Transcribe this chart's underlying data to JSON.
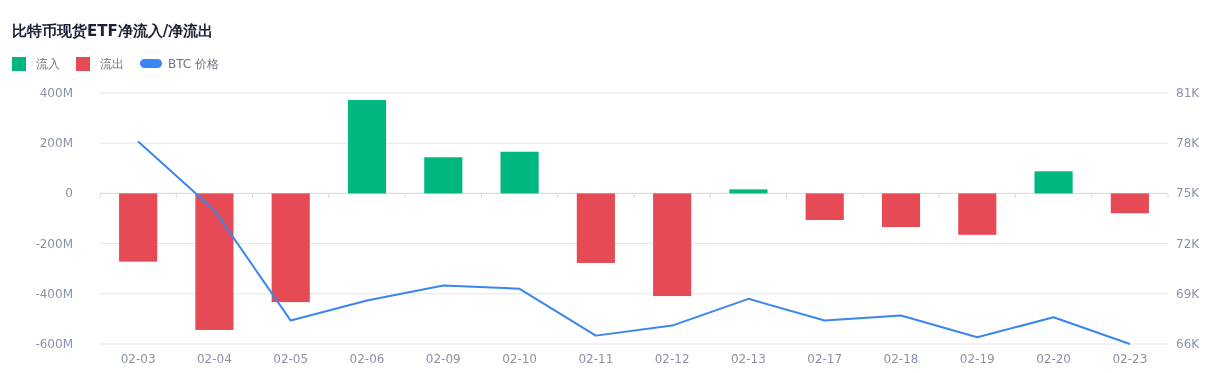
{
  "chart_data": {
    "type": "bar",
    "title": "比特币现货ETF净流入/净流出",
    "categories": [
      "02-03",
      "02-04",
      "02-05",
      "02-06",
      "02-09",
      "02-10",
      "02-11",
      "02-12",
      "02-13",
      "02-17",
      "02-18",
      "02-19",
      "02-20",
      "02-23"
    ],
    "stacked": true,
    "series": [
      {
        "name": "流入",
        "color": "#00b77f",
        "values": [
          null,
          null,
          null,
          372,
          144,
          166,
          null,
          null,
          16,
          null,
          null,
          null,
          88,
          null
        ]
      },
      {
        "name": "流出",
        "color": "#e64b55",
        "values": [
          -272,
          -544,
          -433,
          null,
          null,
          null,
          -277,
          -409,
          null,
          -106,
          -134,
          -165,
          null,
          -79
        ]
      },
      {
        "name": "BTC 价格",
        "type": "line",
        "axis": "y2",
        "color": "#3a86ee",
        "values": [
          78100,
          74000,
          67400,
          68600,
          69500,
          69300,
          66500,
          67100,
          68700,
          67400,
          67700,
          66400,
          67600,
          66000
        ]
      }
    ],
    "ylim": [
      -600,
      400
    ],
    "yticks": [
      {
        "value": -600,
        "label": "-600M"
      },
      {
        "value": -400,
        "label": "-400M"
      },
      {
        "value": -200,
        "label": "-200M"
      },
      0,
      {
        "value": 200,
        "label": "200M"
      },
      {
        "value": 400,
        "label": "400M"
      }
    ],
    "y2lim": [
      66000,
      81000
    ],
    "y2ticks": [
      {
        "value": 66000,
        "label": "66K"
      },
      {
        "value": 69000,
        "label": "69K"
      },
      {
        "value": 72000,
        "label": "72K"
      },
      {
        "value": 75000,
        "label": "75K"
      },
      {
        "value": 78000,
        "label": "78K"
      },
      {
        "value": 81000,
        "label": "81K"
      }
    ],
    "grid": "y",
    "legend": "top left",
    "marker": "none",
    "line_style": "solid"
  }
}
